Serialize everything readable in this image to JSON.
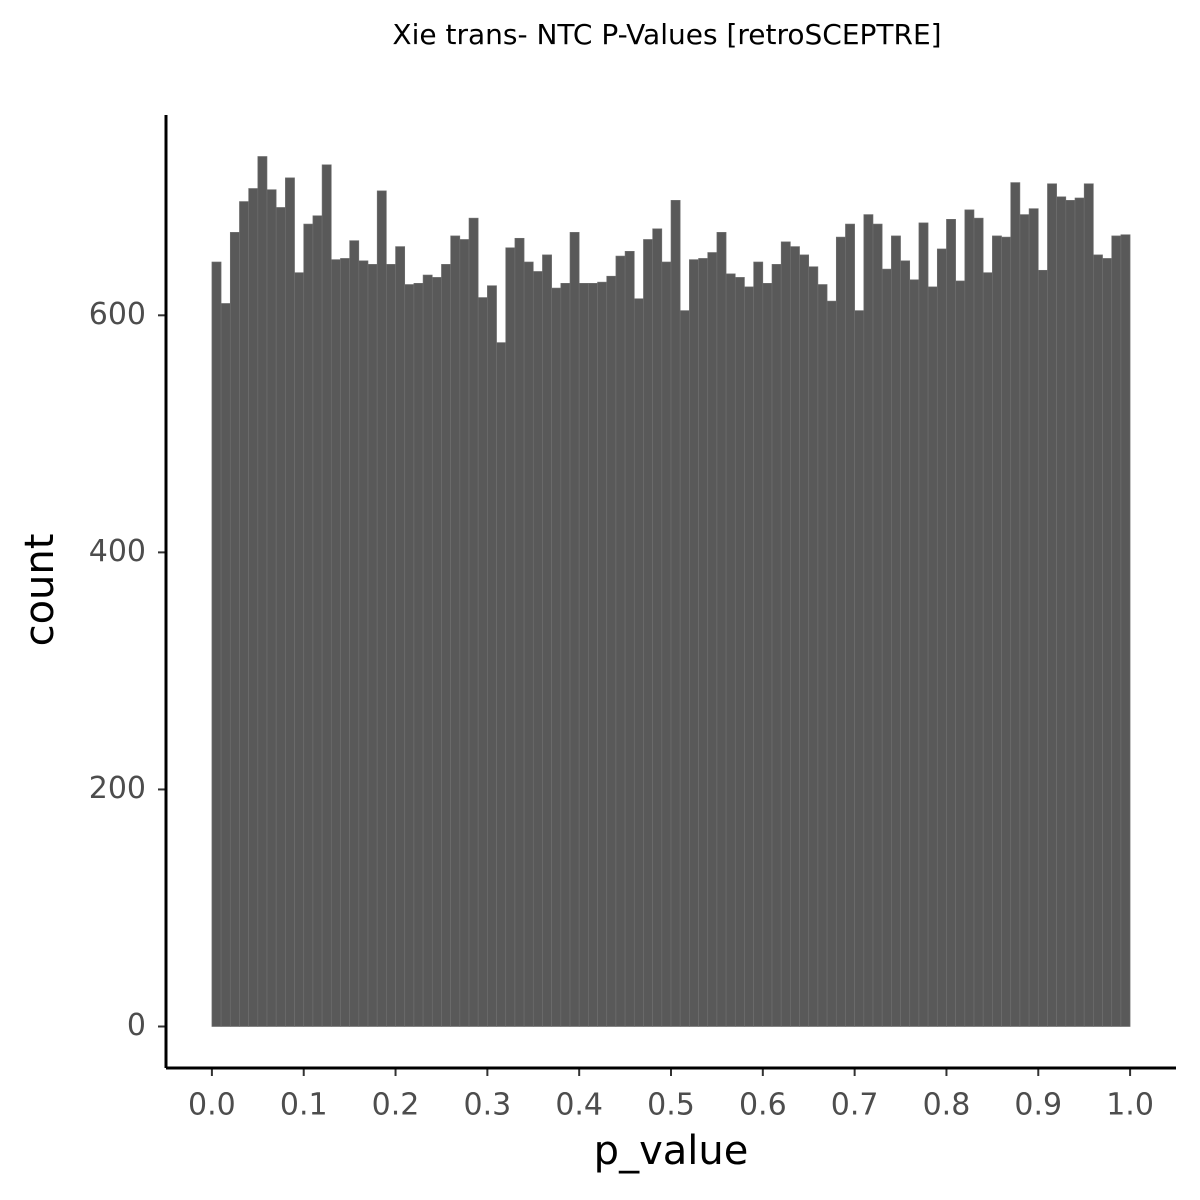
{
  "chart_data": {
    "type": "histogram",
    "title": "Xie trans- NTC P-Values [retroSCEPTRE]",
    "x_label": "p_value",
    "y_label": "count",
    "color": "#595959",
    "bins": [
      0,
      0.01,
      0.02,
      0.03,
      0.04,
      0.05,
      0.06,
      0.07,
      0.08,
      0.09,
      0.1,
      0.11,
      0.12,
      0.13,
      0.14,
      0.15,
      0.16,
      0.17,
      0.18,
      0.19,
      0.2,
      0.21,
      0.22,
      0.23,
      0.24,
      0.25,
      0.26,
      0.27,
      0.28,
      0.29,
      0.3,
      0.31,
      0.32,
      0.33,
      0.34,
      0.35,
      0.36,
      0.37,
      0.38,
      0.39,
      0.4,
      0.41,
      0.42,
      0.43,
      0.44,
      0.45,
      0.46,
      0.47,
      0.48,
      0.49,
      0.5,
      0.51,
      0.52,
      0.53,
      0.54,
      0.55,
      0.56,
      0.57,
      0.58,
      0.59,
      0.6,
      0.61,
      0.62,
      0.63,
      0.64,
      0.65,
      0.66,
      0.67,
      0.68,
      0.69,
      0.7,
      0.71,
      0.72,
      0.73,
      0.74,
      0.75,
      0.76,
      0.77,
      0.78,
      0.79,
      0.8,
      0.81,
      0.82,
      0.83,
      0.84,
      0.85,
      0.86,
      0.87,
      0.88,
      0.89,
      0.9,
      0.91,
      0.92,
      0.93,
      0.94,
      0.95,
      0.96,
      0.97,
      0.98,
      0.99,
      1
    ],
    "counts": [
      645,
      610,
      670,
      696,
      707,
      734,
      706,
      691,
      716,
      636,
      677,
      684,
      727,
      647,
      648,
      663,
      646,
      643,
      705,
      643,
      658,
      626,
      627,
      634,
      632,
      643,
      667,
      664,
      682,
      615,
      625,
      577,
      657,
      665,
      645,
      637,
      651,
      623,
      627,
      670,
      627,
      627,
      628,
      633,
      650,
      654,
      614,
      664,
      673,
      645,
      697,
      604,
      647,
      648,
      653,
      670,
      635,
      632,
      624,
      645,
      627,
      643,
      662,
      658,
      651,
      641,
      626,
      612,
      666,
      677,
      604,
      685,
      677,
      639,
      667,
      646,
      630,
      678,
      624,
      656,
      681,
      629,
      689,
      682,
      636,
      667,
      666,
      712,
      685,
      690,
      638,
      711,
      700,
      697,
      699,
      711,
      651,
      648,
      667,
      668
    ],
    "xlim": [
      -0.05,
      1.05
    ],
    "ylim": [
      -35,
      769
    ],
    "xticks": [
      {
        "value": 0,
        "label": "0.0"
      },
      0.1,
      0.2,
      0.3,
      0.4,
      0.5,
      0.6,
      0.7,
      0.8,
      0.9,
      {
        "value": 1,
        "label": "1.0"
      }
    ],
    "yticks": [
      0,
      200,
      400,
      600
    ]
  }
}
